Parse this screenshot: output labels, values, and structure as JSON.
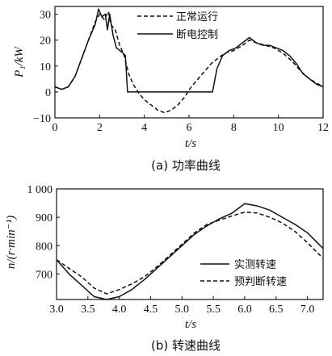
{
  "chart_data": [
    {
      "type": "line",
      "caption": "(a) 功率曲线",
      "xlabel": "t/s",
      "ylabel": "P₁/kW",
      "xlim": [
        0,
        12
      ],
      "ylim": [
        -10,
        33
      ],
      "xticks": [
        "0",
        "2",
        "4",
        "6",
        "8",
        "10",
        "12"
      ],
      "yticks": [
        "−10",
        "0",
        "10",
        "20",
        "30"
      ],
      "legend_position": "top-right",
      "series": [
        {
          "name": "正常运行",
          "style": "dashed",
          "x": [
            0,
            0.3,
            0.6,
            0.9,
            1.2,
            1.5,
            1.8,
            2.0,
            2.2,
            2.4,
            2.5,
            2.7,
            2.9,
            3.1,
            3.3,
            3.5,
            3.8,
            4.0,
            4.3,
            4.6,
            4.9,
            5.2,
            5.5,
            5.8,
            6.1,
            6.4,
            6.7,
            7.0,
            7.3,
            7.6,
            8.0,
            8.4,
            8.7,
            9.0,
            9.4,
            9.8,
            10.2,
            10.6,
            11.0,
            11.4,
            11.8,
            12.0
          ],
          "y": [
            2,
            1,
            2,
            6,
            13,
            20,
            27,
            30,
            28,
            31,
            26,
            24,
            18,
            14,
            7,
            3,
            -1,
            -3,
            -5,
            -7,
            -8,
            -7,
            -5,
            -2,
            2,
            5,
            8,
            11,
            13,
            15,
            16,
            18,
            20,
            19,
            18,
            17,
            15,
            12,
            8,
            5,
            3,
            2
          ]
        },
        {
          "name": "断电控制",
          "style": "solid",
          "x": [
            0,
            0.3,
            0.6,
            0.9,
            1.2,
            1.5,
            1.8,
            1.95,
            2.1,
            2.25,
            2.35,
            2.45,
            2.6,
            2.75,
            2.9,
            3.05,
            3.15,
            3.25,
            7.05,
            7.25,
            7.5,
            7.8,
            8.1,
            8.4,
            8.7,
            9.0,
            9.3,
            9.6,
            9.9,
            10.2,
            10.5,
            10.8,
            11.1,
            11.4,
            11.7,
            12.0
          ],
          "y": [
            2,
            1,
            2,
            6,
            13,
            20,
            26,
            32,
            29,
            30,
            24,
            30,
            22,
            17,
            16,
            15,
            14,
            0,
            0,
            9,
            14,
            16,
            17,
            19,
            21,
            19,
            18,
            18,
            17,
            16,
            14,
            11,
            7,
            5,
            3,
            2
          ]
        }
      ]
    },
    {
      "type": "line",
      "caption": "(b) 转速曲线",
      "xlabel": "t/s",
      "ylabel": "n/(r·min⁻¹)",
      "xlim": [
        3.0,
        7.25
      ],
      "ylim": [
        610,
        1000
      ],
      "xticks": [
        "3.0",
        "3.5",
        "4.0",
        "4.5",
        "5.0",
        "5.5",
        "6.0",
        "6.5",
        "7.0"
      ],
      "yticks": [
        "700",
        "800",
        "900",
        "1 000"
      ],
      "legend_position": "bottom-right",
      "series": [
        {
          "name": "实测转速",
          "style": "solid",
          "x": [
            3.0,
            3.2,
            3.4,
            3.6,
            3.8,
            4.0,
            4.2,
            4.4,
            4.6,
            4.8,
            5.0,
            5.2,
            5.4,
            5.6,
            5.8,
            6.0,
            6.2,
            6.4,
            6.6,
            6.8,
            7.0,
            7.25
          ],
          "y": [
            750,
            700,
            660,
            620,
            610,
            620,
            645,
            680,
            720,
            760,
            800,
            840,
            870,
            895,
            915,
            948,
            940,
            925,
            900,
            875,
            845,
            790
          ]
        },
        {
          "name": "预判断转速",
          "style": "dashed",
          "x": [
            3.0,
            3.2,
            3.4,
            3.6,
            3.8,
            4.0,
            4.2,
            4.4,
            4.6,
            4.8,
            5.0,
            5.2,
            5.4,
            5.6,
            5.8,
            6.0,
            6.2,
            6.4,
            6.6,
            6.8,
            7.0,
            7.25
          ],
          "y": [
            750,
            720,
            690,
            650,
            630,
            645,
            665,
            690,
            725,
            765,
            805,
            845,
            875,
            890,
            905,
            918,
            915,
            900,
            880,
            850,
            810,
            755
          ]
        }
      ]
    }
  ]
}
